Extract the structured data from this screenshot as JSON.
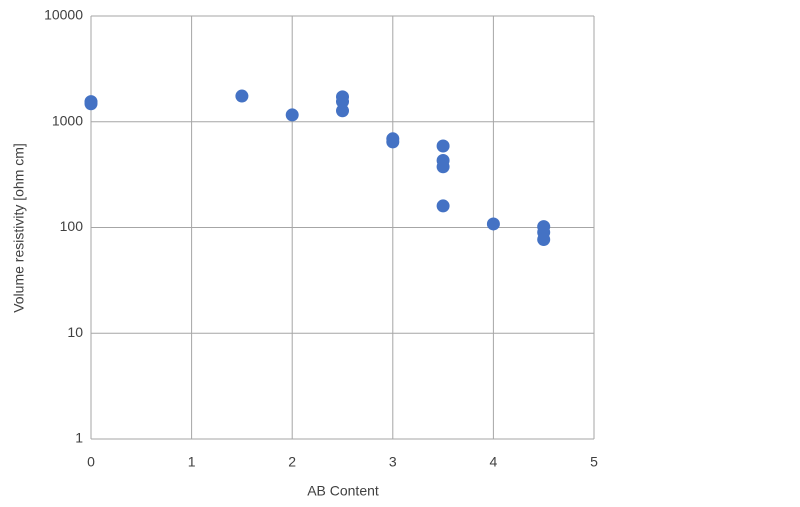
{
  "chart_data": {
    "type": "scatter",
    "x_label": "AB Content",
    "y_label": "Volume resistivity [ohm cm]",
    "x": [
      0,
      0,
      1.5,
      2,
      2.5,
      2.5,
      2.5,
      3,
      3,
      3.5,
      3.5,
      3.5,
      3.5,
      4,
      4.5,
      4.5,
      4.5
    ],
    "values": [
      1550,
      1480,
      1750,
      1160,
      1720,
      1550,
      1270,
      690,
      645,
      590,
      430,
      375,
      160,
      108,
      102,
      90,
      77
    ],
    "color": "#4472c4",
    "xlim": [
      0,
      5
    ],
    "xticks": [
      0,
      1,
      2,
      3,
      4,
      5
    ],
    "ylim": [
      1,
      10000
    ],
    "yticks": [
      1,
      10,
      100,
      1000,
      10000
    ],
    "log_y": true,
    "grid": true
  }
}
